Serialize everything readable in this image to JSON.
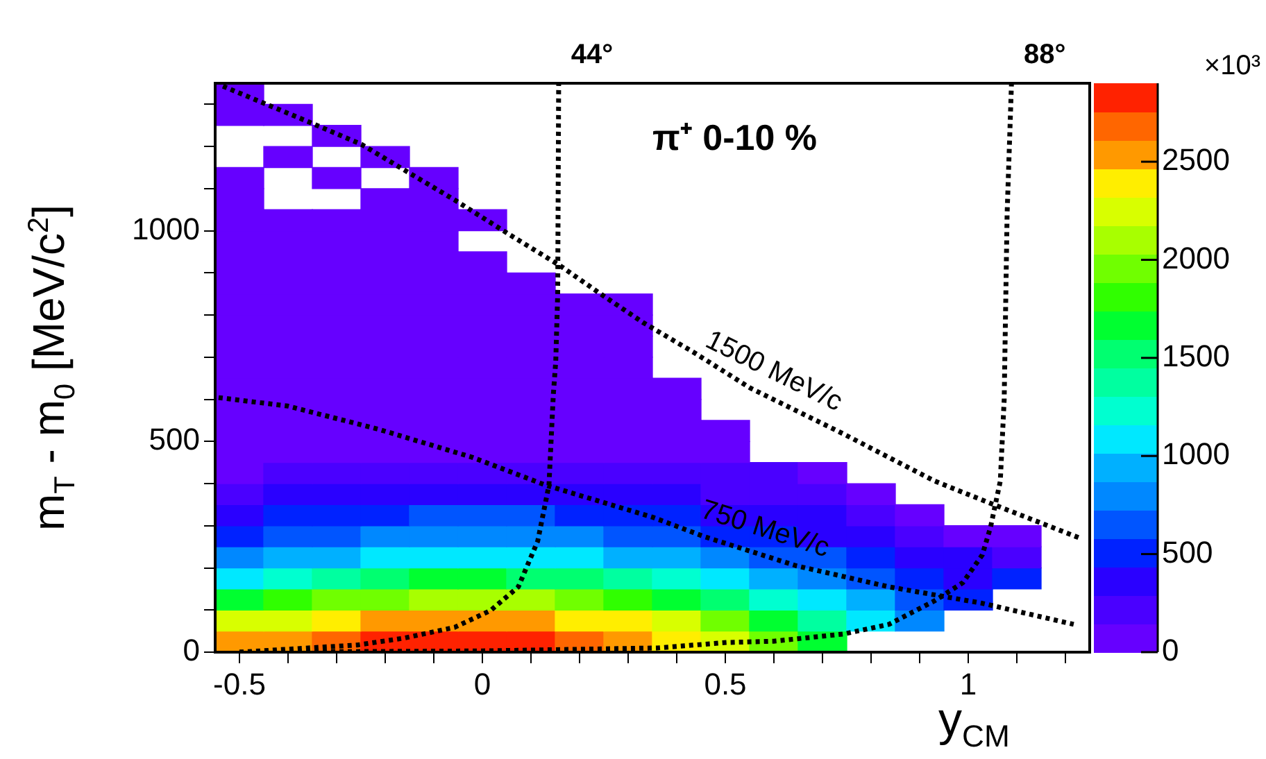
{
  "chart_data": {
    "type": "heatmap",
    "title": "π⁺ 0-10 %",
    "xlabel": "y$_{CM}$",
    "ylabel": "m$_{T}$ - m$_{0}$ [MeV/c$^{2}$]",
    "clabel": "×10³",
    "x": [
      -0.5,
      -0.4,
      -0.3,
      -0.2,
      -0.1,
      0,
      0.1,
      0.2,
      0.3,
      0.4,
      0.5,
      0.6,
      0.7,
      0.8,
      0.9,
      1,
      1.1
    ],
    "cells": [
      [
        60,
        null,
        null,
        null,
        null,
        null,
        null,
        null,
        null,
        null,
        null,
        null,
        null,
        null,
        null,
        null,
        null
      ],
      [
        30,
        60,
        null,
        null,
        null,
        null,
        null,
        null,
        null,
        null,
        null,
        null,
        null,
        null,
        null,
        null,
        null
      ],
      [
        null,
        null,
        60,
        null,
        null,
        null,
        null,
        null,
        null,
        null,
        null,
        null,
        null,
        null,
        null,
        null,
        null
      ],
      [
        null,
        30,
        null,
        60,
        null,
        null,
        null,
        null,
        null,
        null,
        null,
        null,
        null,
        null,
        null,
        null,
        null
      ],
      [
        30,
        null,
        30,
        null,
        60,
        null,
        null,
        null,
        null,
        null,
        null,
        null,
        null,
        null,
        null,
        null,
        null
      ],
      [
        30,
        null,
        null,
        40,
        40,
        null,
        null,
        null,
        null,
        null,
        null,
        null,
        null,
        null,
        null,
        null,
        null
      ],
      [
        60,
        40,
        40,
        80,
        80,
        50,
        null,
        null,
        null,
        null,
        null,
        null,
        null,
        null,
        null,
        null,
        null
      ],
      [
        80,
        80,
        80,
        80,
        80,
        null,
        null,
        null,
        null,
        null,
        null,
        null,
        null,
        null,
        null,
        null,
        null
      ],
      [
        80,
        80,
        80,
        80,
        80,
        40,
        null,
        null,
        null,
        null,
        null,
        null,
        null,
        null,
        null,
        null,
        null
      ],
      [
        80,
        80,
        80,
        80,
        80,
        80,
        30,
        null,
        null,
        null,
        null,
        null,
        null,
        null,
        null,
        null,
        null
      ],
      [
        80,
        80,
        80,
        80,
        80,
        80,
        80,
        40,
        50,
        null,
        null,
        null,
        null,
        null,
        null,
        null,
        null
      ],
      [
        80,
        80,
        80,
        80,
        80,
        80,
        80,
        80,
        30,
        null,
        null,
        null,
        null,
        null,
        null,
        null,
        null
      ],
      [
        80,
        80,
        80,
        80,
        80,
        80,
        80,
        80,
        40,
        null,
        null,
        null,
        null,
        null,
        null,
        null,
        null
      ],
      [
        80,
        80,
        80,
        80,
        80,
        80,
        80,
        80,
        80,
        null,
        null,
        null,
        null,
        null,
        null,
        null,
        null
      ],
      [
        80,
        80,
        80,
        80,
        80,
        80,
        80,
        80,
        80,
        80,
        null,
        null,
        null,
        null,
        null,
        null,
        null
      ],
      [
        80,
        80,
        80,
        80,
        80,
        80,
        80,
        80,
        80,
        80,
        null,
        null,
        null,
        null,
        null,
        null,
        null
      ],
      [
        80,
        80,
        80,
        80,
        80,
        80,
        80,
        80,
        80,
        80,
        40,
        null,
        null,
        null,
        null,
        null,
        null
      ],
      [
        80,
        100,
        100,
        120,
        130,
        140,
        130,
        120,
        110,
        100,
        90,
        null,
        null,
        null,
        null,
        null,
        null
      ],
      [
        100,
        200,
        200,
        250,
        260,
        280,
        270,
        250,
        230,
        200,
        180,
        150,
        30,
        null,
        null,
        null,
        null
      ],
      [
        200,
        300,
        350,
        380,
        400,
        420,
        400,
        380,
        350,
        300,
        280,
        240,
        200,
        40,
        null,
        null,
        null
      ],
      [
        300,
        450,
        500,
        550,
        600,
        600,
        580,
        550,
        500,
        450,
        400,
        350,
        300,
        250,
        40,
        null,
        null
      ],
      [
        500,
        650,
        700,
        750,
        800,
        820,
        800,
        750,
        700,
        650,
        550,
        500,
        420,
        350,
        250,
        40,
        40
      ],
      [
        750,
        900,
        1000,
        1050,
        1150,
        1150,
        1100,
        1050,
        950,
        900,
        800,
        700,
        600,
        500,
        350,
        300,
        250
      ],
      [
        1100,
        1300,
        1400,
        1500,
        1600,
        1600,
        1550,
        1450,
        1350,
        1250,
        1100,
        950,
        800,
        700,
        450,
        400,
        450
      ],
      [
        1700,
        1800,
        1900,
        2000,
        2100,
        2100,
        2050,
        1950,
        1850,
        1700,
        1500,
        1300,
        1100,
        900,
        600,
        550,
        null
      ],
      [
        2200,
        2300,
        2400,
        2500,
        2600,
        2600,
        2550,
        2450,
        2350,
        2200,
        2000,
        1700,
        1400,
        1100,
        800,
        null,
        null
      ],
      [
        2500,
        2600,
        2700,
        2800,
        2850,
        2850,
        2800,
        2700,
        2550,
        2400,
        2200,
        1900,
        1600,
        null,
        null,
        null,
        null
      ]
    ],
    "series": [
      {
        "type": "line",
        "name": "1500 MeV/c",
        "color": "#000000",
        "x": [
          -0.534,
          -0.363,
          -0.249,
          -0.143,
          -0.057,
          0.057,
          0.16,
          0.246,
          0.331,
          0.437,
          0.551,
          0.743,
          0.931,
          1.046,
          1.229
        ],
        "values": [
          1343,
          1261,
          1205,
          1132,
          1073,
          990,
          917,
          848,
          782,
          710,
          627,
          518,
          406,
          353,
          271
        ]
      },
      {
        "type": "line",
        "name": "750 MeV/c",
        "color": "#000000",
        "x": [
          -0.543,
          -0.4,
          -0.211,
          -0.02,
          0.131,
          0.351,
          0.457,
          0.646,
          0.837,
          1.029,
          1.217
        ],
        "values": [
          604,
          584,
          528,
          462,
          396,
          320,
          274,
          205,
          155,
          116,
          66
        ]
      },
      {
        "type": "line",
        "name": "44°",
        "color": "#000000",
        "x": [
          -0.5,
          -0.4,
          -0.257,
          -0.163,
          -0.057,
          0.017,
          0.074,
          0.114,
          0.137,
          0.146,
          0.151,
          0.155,
          0.157
        ],
        "values": [
          0,
          7,
          17,
          33,
          59,
          99,
          155,
          264,
          396,
          611,
          690,
          850,
          1350
        ]
      },
      {
        "type": "line",
        "name": "88°",
        "color": "#000000",
        "x": [
          -0.5,
          0,
          0.36,
          0.503,
          0.6,
          0.743,
          0.837,
          0.931,
          0.989,
          1.029,
          1.046,
          1.066,
          1.074,
          1.08,
          1.089
        ],
        "values": [
          0,
          3,
          10,
          23,
          26,
          43,
          66,
          122,
          165,
          231,
          297,
          406,
          600,
          1040,
          1350
        ]
      }
    ],
    "line_style": "dotted",
    "marker": "none",
    "xlim": [
      -0.55,
      1.25
    ],
    "ylim": [
      0,
      1350
    ],
    "xticks": [
      -0.5,
      {
        "value": -0.4,
        "label": null
      },
      {
        "value": -0.3,
        "label": null
      },
      {
        "value": -0.2,
        "label": null
      },
      {
        "value": -0.1,
        "label": null
      },
      0,
      {
        "value": 0.1,
        "label": null
      },
      {
        "value": 0.2,
        "label": null
      },
      {
        "value": 0.3,
        "label": null
      },
      {
        "value": 0.4,
        "label": null
      },
      0.5,
      {
        "value": 0.6,
        "label": null
      },
      {
        "value": 0.7,
        "label": null
      },
      {
        "value": 0.8,
        "label": null
      },
      {
        "value": 0.9,
        "label": null
      },
      1,
      {
        "value": 1.1,
        "label": null
      },
      {
        "value": 1.2,
        "label": null
      }
    ],
    "yticks": [
      0,
      {
        "value": 100,
        "label": null
      },
      {
        "value": 200,
        "label": null
      },
      {
        "value": 300,
        "label": null
      },
      {
        "value": 400,
        "label": null
      },
      500,
      {
        "value": 600,
        "label": null
      },
      {
        "value": 700,
        "label": null
      },
      {
        "value": 800,
        "label": null
      },
      {
        "value": 900,
        "label": null
      },
      1000,
      {
        "value": 1100,
        "label": null
      },
      {
        "value": 1200,
        "label": null
      },
      {
        "value": 1300,
        "label": null
      }
    ],
    "clim": [
      0,
      2900
    ],
    "cticks": [
      0,
      500,
      1000,
      1500,
      2000,
      2500
    ],
    "grid": false,
    "legend": false
  }
}
